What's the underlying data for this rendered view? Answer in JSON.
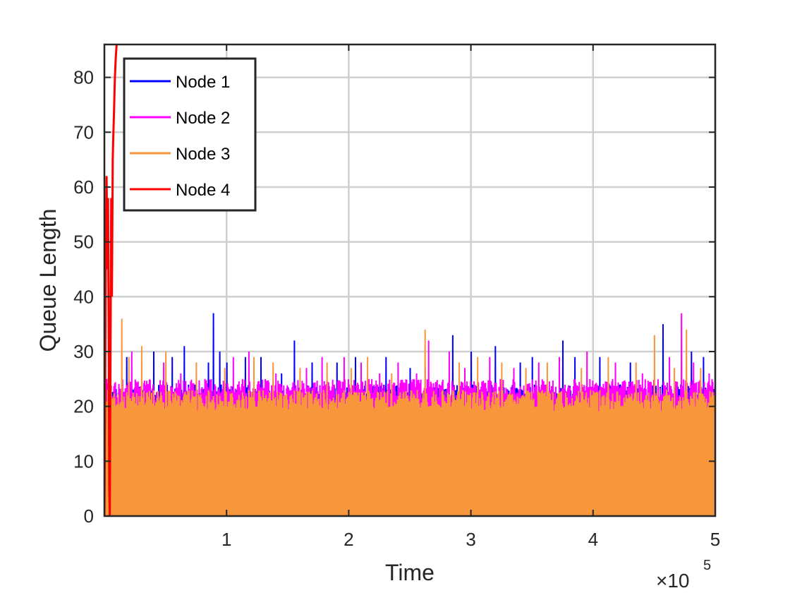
{
  "chart_data": {
    "type": "line",
    "title": "",
    "xlabel": "Time",
    "ylabel": "Queue Length",
    "xlim": [
      0,
      500000
    ],
    "ylim": [
      0,
      86
    ],
    "x_ticks": [
      100000,
      200000,
      300000,
      400000,
      500000
    ],
    "x_tick_labels": [
      "1",
      "2",
      "3",
      "4",
      "5"
    ],
    "x_multiplier": {
      "base": "×10",
      "exponent": "5"
    },
    "y_ticks": [
      0,
      10,
      20,
      30,
      40,
      50,
      60,
      70,
      80
    ],
    "y_tick_labels": [
      "0",
      "10",
      "20",
      "30",
      "40",
      "50",
      "60",
      "70",
      "80"
    ],
    "grid": true,
    "legend_position": "top-left",
    "series": [
      {
        "name": "Node 1",
        "color": "#0000ff",
        "style": "dense oscillation between 0 and ~24, spikes up to ~37",
        "baseline_peak": 24,
        "spikes": [
          [
            18000,
            29
          ],
          [
            40000,
            30
          ],
          [
            55000,
            29
          ],
          [
            65000,
            31
          ],
          [
            85000,
            28
          ],
          [
            89000,
            37
          ],
          [
            94000,
            30
          ],
          [
            100000,
            28
          ],
          [
            115000,
            29
          ],
          [
            128000,
            29
          ],
          [
            145000,
            26
          ],
          [
            155000,
            32
          ],
          [
            170000,
            28
          ],
          [
            190000,
            28
          ],
          [
            205000,
            29
          ],
          [
            230000,
            29
          ],
          [
            250000,
            27
          ],
          [
            262000,
            27
          ],
          [
            285000,
            33
          ],
          [
            300000,
            30
          ],
          [
            320000,
            31
          ],
          [
            340000,
            28
          ],
          [
            350000,
            29
          ],
          [
            375000,
            32
          ],
          [
            385000,
            29
          ],
          [
            405000,
            29
          ],
          [
            430000,
            28
          ],
          [
            457000,
            35
          ],
          [
            480000,
            30
          ],
          [
            490000,
            29
          ]
        ]
      },
      {
        "name": "Node 2",
        "color": "#ff00ff",
        "style": "dense oscillation between 0 and ~25, spikes up to ~37",
        "baseline_peak": 25,
        "spikes": [
          [
            2000,
            25
          ],
          [
            22000,
            30
          ],
          [
            48000,
            28
          ],
          [
            62000,
            26
          ],
          [
            82000,
            25
          ],
          [
            105000,
            29
          ],
          [
            118000,
            30
          ],
          [
            140000,
            26
          ],
          [
            165000,
            27
          ],
          [
            178000,
            29
          ],
          [
            196000,
            29
          ],
          [
            210000,
            28
          ],
          [
            225000,
            26
          ],
          [
            240000,
            28
          ],
          [
            255000,
            26
          ],
          [
            265000,
            32
          ],
          [
            282000,
            30
          ],
          [
            295000,
            27
          ],
          [
            315000,
            29
          ],
          [
            335000,
            27
          ],
          [
            355000,
            28
          ],
          [
            372000,
            29
          ],
          [
            395000,
            30
          ],
          [
            418000,
            28
          ],
          [
            440000,
            26
          ],
          [
            462000,
            29
          ],
          [
            472000,
            37
          ],
          [
            482000,
            28
          ],
          [
            495000,
            26
          ]
        ]
      },
      {
        "name": "Node 3",
        "color": "#f7963a",
        "style": "dense oscillation between 0 and ~23, spikes up to ~36",
        "baseline_peak": 23,
        "spikes": [
          [
            14000,
            36
          ],
          [
            20000,
            29
          ],
          [
            30000,
            31
          ],
          [
            50000,
            30
          ],
          [
            75000,
            28
          ],
          [
            98000,
            27
          ],
          [
            122000,
            29
          ],
          [
            138000,
            28
          ],
          [
            160000,
            27
          ],
          [
            182000,
            28
          ],
          [
            202000,
            27
          ],
          [
            215000,
            29
          ],
          [
            235000,
            26
          ],
          [
            262000,
            34
          ],
          [
            290000,
            28
          ],
          [
            305000,
            29
          ],
          [
            325000,
            28
          ],
          [
            345000,
            27
          ],
          [
            362000,
            28
          ],
          [
            390000,
            27
          ],
          [
            412000,
            29
          ],
          [
            435000,
            28
          ],
          [
            450000,
            33
          ],
          [
            466000,
            27
          ],
          [
            476000,
            34
          ],
          [
            488000,
            27
          ]
        ]
      },
      {
        "name": "Node 4",
        "color": "#ff0000",
        "style": "transient at start, oscillates then rises off-scale",
        "points": [
          [
            0,
            0
          ],
          [
            600,
            20
          ],
          [
            1200,
            50
          ],
          [
            1800,
            62
          ],
          [
            2400,
            45
          ],
          [
            3000,
            58
          ],
          [
            3600,
            30
          ],
          [
            4000,
            5
          ],
          [
            4400,
            0
          ],
          [
            5000,
            30
          ],
          [
            5600,
            58
          ],
          [
            6200,
            40
          ],
          [
            6800,
            65
          ],
          [
            7400,
            70
          ],
          [
            8000,
            75
          ],
          [
            8600,
            80
          ],
          [
            9200,
            83
          ],
          [
            10000,
            86
          ]
        ]
      }
    ]
  }
}
